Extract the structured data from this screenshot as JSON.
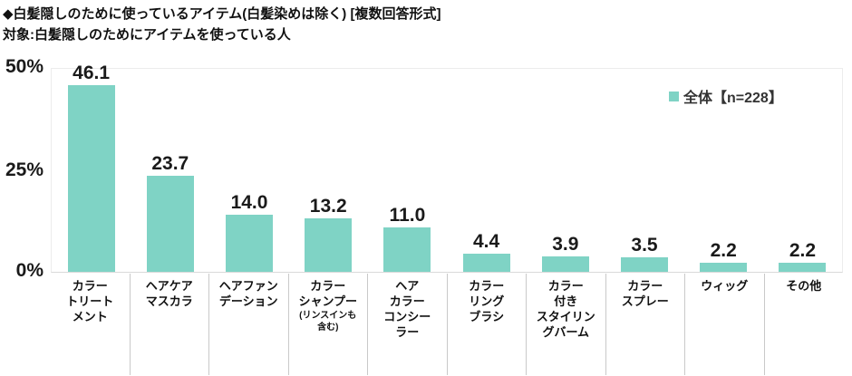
{
  "header": {
    "title": "◆白髪隠しのために使っているアイテム(白髪染めは除く) [複数回答形式]",
    "subtitle": "対象:白髪隠しのためにアイテムを使っている人"
  },
  "legend": {
    "label": "全体【n=228】"
  },
  "axis": {
    "ticks": [
      "50%",
      "25%",
      "0%"
    ],
    "max": 50
  },
  "colors": {
    "bar": "#7fd3c5",
    "text": "#1a1a1a"
  },
  "bars": [
    {
      "value": 46.1,
      "label": "46.1",
      "category": "カラー\nトリート\nメント",
      "note": ""
    },
    {
      "value": 23.7,
      "label": "23.7",
      "category": "ヘアケア\nマスカラ",
      "note": ""
    },
    {
      "value": 14.0,
      "label": "14.0",
      "category": "ヘアファン\nデーション",
      "note": ""
    },
    {
      "value": 13.2,
      "label": "13.2",
      "category": "カラー\nシャンプー",
      "note": "(リンスインも\n含む)"
    },
    {
      "value": 11.0,
      "label": "11.0",
      "category": "ヘア\nカラー\nコンシー\nラー",
      "note": ""
    },
    {
      "value": 4.4,
      "label": "4.4",
      "category": "カラー\nリング\nブラシ",
      "note": ""
    },
    {
      "value": 3.9,
      "label": "3.9",
      "category": "カラー\n付き\nスタイリン\nグバーム",
      "note": ""
    },
    {
      "value": 3.5,
      "label": "3.5",
      "category": "カラー\nスプレー",
      "note": ""
    },
    {
      "value": 2.2,
      "label": "2.2",
      "category": "ウィッグ",
      "note": ""
    },
    {
      "value": 2.2,
      "label": "2.2",
      "category": "その他",
      "note": ""
    }
  ],
  "chart_data": {
    "type": "bar",
    "title": "◆白髪隠しのために使っているアイテム(白髪染めは除く) [複数回答形式]",
    "subtitle": "対象:白髪隠しのためにアイテムを使っている人",
    "categories": [
      "カラートリートメント",
      "ヘアケアマスカラ",
      "ヘアファンデーション",
      "カラーシャンプー(リンスインも含む)",
      "ヘアカラーコンシーラー",
      "カラーリングブラシ",
      "カラー付きスタイリングバーム",
      "カラースプレー",
      "ウィッグ",
      "その他"
    ],
    "series": [
      {
        "name": "全体【n=228】",
        "values": [
          46.1,
          23.7,
          14.0,
          13.2,
          11.0,
          4.4,
          3.9,
          3.5,
          2.2,
          2.2
        ]
      }
    ],
    "xlabel": "",
    "ylabel": "%",
    "ylim": [
      0,
      50
    ],
    "yticks": [
      0,
      25,
      50
    ],
    "grid": false,
    "legend_position": "top-right",
    "bar_color": "#7fd3c5"
  }
}
